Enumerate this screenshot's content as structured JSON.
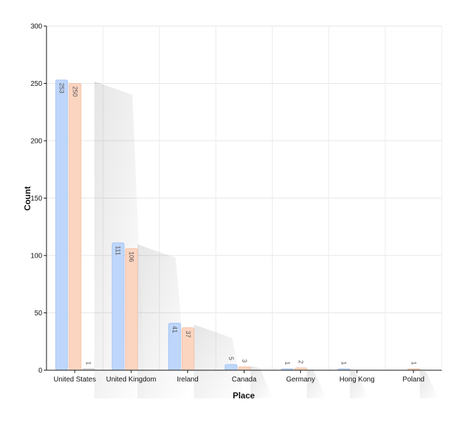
{
  "chart_data": {
    "type": "bar",
    "title": "",
    "xlabel": "Place",
    "ylabel": "Count",
    "ylim": [
      0,
      300
    ],
    "yticks": [
      0,
      50,
      100,
      150,
      200,
      250,
      300
    ],
    "grid": true,
    "categories": [
      "United States",
      "United Kingdom",
      "Ireland",
      "Canada",
      "Germany",
      "Hong Kong",
      "Poland"
    ],
    "series": [
      {
        "values": [
          253,
          111,
          41,
          5,
          1,
          1,
          null
        ],
        "color": "#bed6fb",
        "stroke": "#9fbff2"
      },
      {
        "values": [
          250,
          106,
          37,
          3,
          2,
          null,
          1
        ],
        "color": "#fcd5c0",
        "stroke": "#f2b89b"
      },
      {
        "values": [
          1,
          null,
          null,
          null,
          null,
          null,
          null
        ],
        "color": "#d9d9d9",
        "stroke": "#bbbbbb"
      }
    ]
  }
}
